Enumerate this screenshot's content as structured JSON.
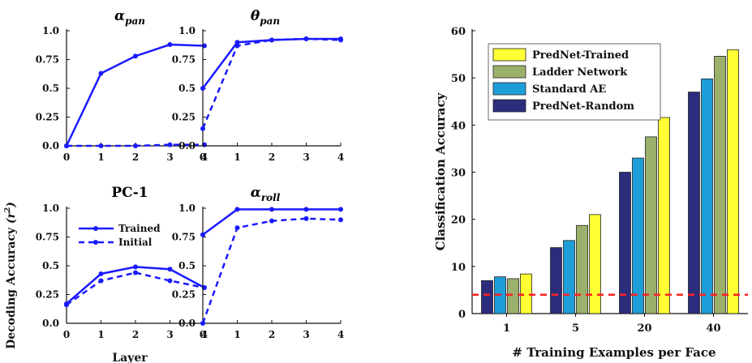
{
  "chart_data": [
    {
      "type": "line",
      "title_sym": "α",
      "title_sub": "pan",
      "x": [
        0,
        1,
        2,
        3,
        4
      ],
      "xticks": [
        "0",
        "1",
        "2",
        "3",
        "4"
      ],
      "yticks": [
        "0.0",
        "0.25",
        "0.5",
        "0.75",
        "1.0"
      ],
      "ylim": [
        0,
        1
      ],
      "series": [
        {
          "name": "Trained",
          "style": "solid",
          "values": [
            0.0,
            0.63,
            0.78,
            0.88,
            0.87
          ]
        },
        {
          "name": "Initial",
          "style": "dashed",
          "values": [
            0.0,
            0.0,
            0.0,
            0.01,
            0.01
          ]
        }
      ]
    },
    {
      "type": "line",
      "title_sym": "θ",
      "title_sub": "pan",
      "x": [
        0,
        1,
        2,
        3,
        4
      ],
      "xticks": [
        "0",
        "1",
        "2",
        "3",
        "4"
      ],
      "yticks": [
        "0.0",
        "0.25",
        "0.5",
        "0.75",
        "1.0"
      ],
      "ylim": [
        0,
        1
      ],
      "series": [
        {
          "name": "Trained",
          "style": "solid",
          "values": [
            0.5,
            0.9,
            0.92,
            0.93,
            0.93
          ]
        },
        {
          "name": "Initial",
          "style": "dashed",
          "values": [
            0.15,
            0.87,
            0.92,
            0.93,
            0.92
          ]
        }
      ]
    },
    {
      "type": "line",
      "title": "PC-1",
      "x": [
        0,
        1,
        2,
        3,
        4
      ],
      "xticks": [
        "0",
        "1",
        "2",
        "3",
        "4"
      ],
      "yticks": [
        "0.0",
        "0.25",
        "0.5",
        "0.75",
        "1.0"
      ],
      "ylim": [
        0,
        1
      ],
      "legend": [
        "Trained",
        "Initial"
      ],
      "series": [
        {
          "name": "Trained",
          "style": "solid",
          "values": [
            0.17,
            0.43,
            0.49,
            0.47,
            0.31
          ]
        },
        {
          "name": "Initial",
          "style": "dashed",
          "values": [
            0.16,
            0.37,
            0.44,
            0.37,
            0.31
          ]
        }
      ]
    },
    {
      "type": "line",
      "title_sym": "α",
      "title_sub": "roll",
      "x": [
        0,
        1,
        2,
        3,
        4
      ],
      "xticks": [
        "0",
        "1",
        "2",
        "3",
        "4"
      ],
      "yticks": [
        "0.0",
        "0.25",
        "0.5",
        "0.75",
        "1.0"
      ],
      "ylim": [
        0,
        1
      ],
      "series": [
        {
          "name": "Trained",
          "style": "solid",
          "values": [
            0.77,
            0.99,
            0.99,
            0.99,
            0.99
          ]
        },
        {
          "name": "Initial",
          "style": "dashed",
          "values": [
            0.0,
            0.83,
            0.89,
            0.91,
            0.9
          ]
        }
      ]
    },
    {
      "type": "bar",
      "categories": [
        "1",
        "5",
        "20",
        "40"
      ],
      "xlabel": "# Training Examples per Face",
      "ylabel": "Classification Accuracy",
      "ylim": [
        0,
        60
      ],
      "yticks": [
        "0",
        "10",
        "20",
        "30",
        "40",
        "50",
        "60"
      ],
      "legend": [
        "PredNet-Trained",
        "Ladder Network",
        "Standard AE",
        "PredNet-Random"
      ],
      "chance_level": 4,
      "series": [
        {
          "name": "PredNet-Random",
          "color": "#2b2d7c",
          "values": [
            7.0,
            14.0,
            30.0,
            47.0
          ]
        },
        {
          "name": "Standard AE",
          "color": "#1e9ed8",
          "values": [
            7.8,
            15.5,
            33.0,
            49.8
          ]
        },
        {
          "name": "Ladder Network",
          "color": "#9bb06a",
          "values": [
            7.4,
            18.7,
            37.5,
            54.6
          ]
        },
        {
          "name": "PredNet-Trained",
          "color": "#ffff33",
          "values": [
            8.4,
            21.0,
            41.6,
            56.0
          ]
        }
      ]
    }
  ],
  "shared": {
    "ylabel_main": "Decoding Accuracy",
    "ylabel_sym": "(r",
    "ylabel_sup": "2",
    "ylabel_close": ")",
    "xlabel": "Layer"
  },
  "colors": {
    "line": "#1a1aff",
    "chance": "#ff2020"
  }
}
